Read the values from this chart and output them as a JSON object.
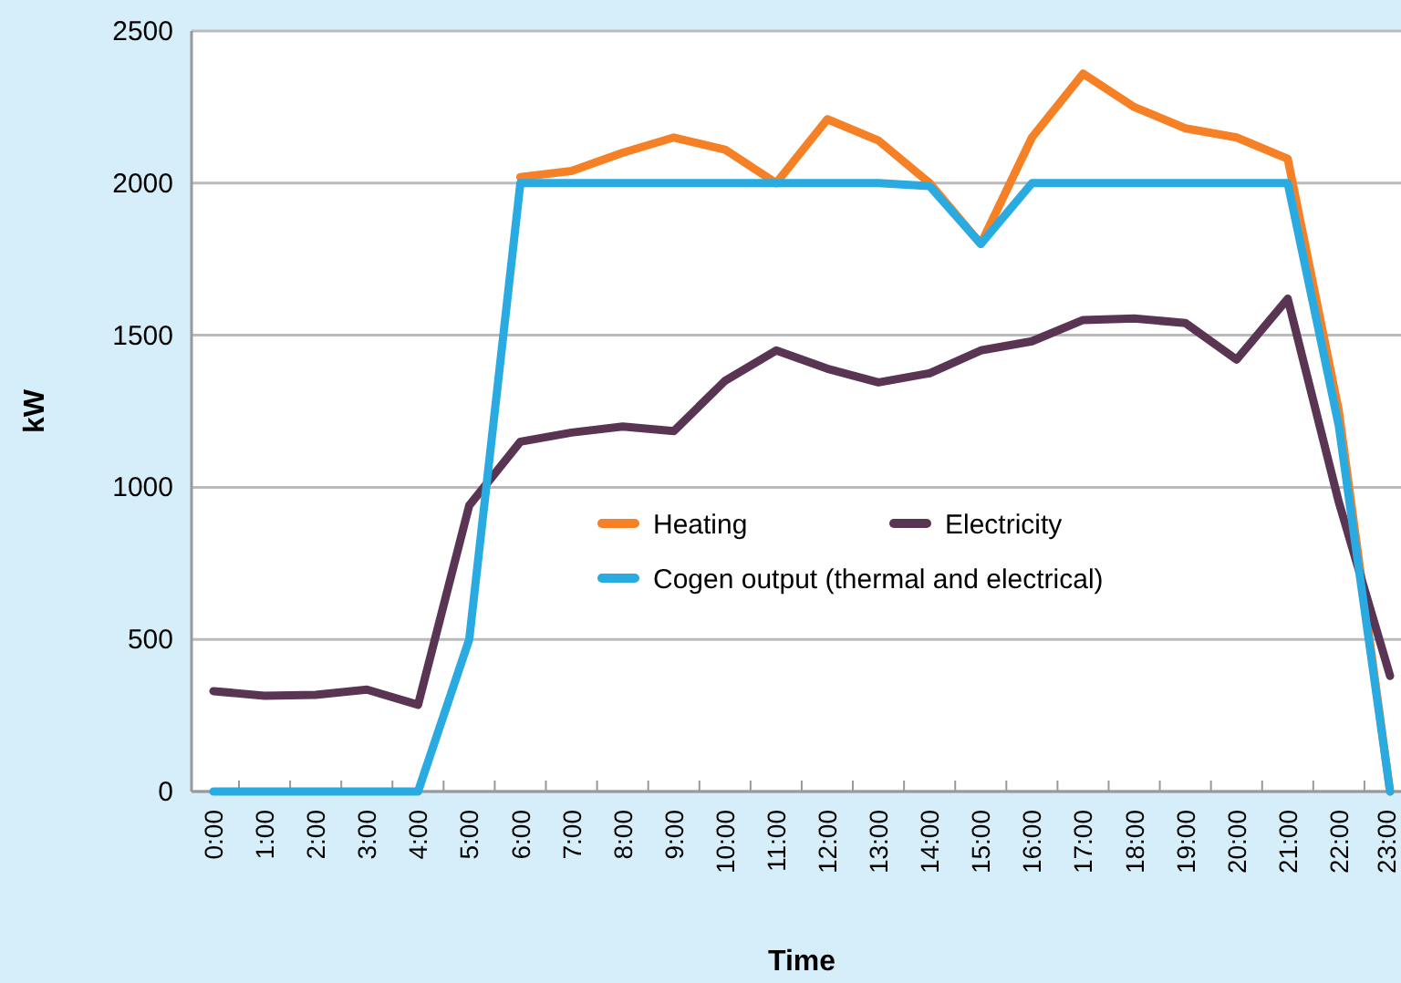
{
  "chart_data": {
    "type": "line",
    "xlabel": "Time",
    "ylabel": "kW",
    "categories": [
      "0:00",
      "1:00",
      "2:00",
      "3:00",
      "4:00",
      "5:00",
      "6:00",
      "7:00",
      "8:00",
      "9:00",
      "10:00",
      "11:00",
      "12:00",
      "13:00",
      "14:00",
      "15:00",
      "16:00",
      "17:00",
      "18:00",
      "19:00",
      "20:00",
      "21:00",
      "22:00",
      "23:00"
    ],
    "series": [
      {
        "name": "Heating",
        "color": "#f58025",
        "values": [
          null,
          null,
          null,
          null,
          null,
          null,
          2020,
          2040,
          2100,
          2150,
          2110,
          2000,
          2210,
          2140,
          2000,
          1800,
          2150,
          2360,
          2250,
          2180,
          2150,
          2080,
          1250,
          0
        ]
      },
      {
        "name": "Electricity",
        "color": "#5a3553",
        "values": [
          330,
          315,
          318,
          335,
          285,
          940,
          1150,
          1180,
          1200,
          1185,
          1350,
          1450,
          1390,
          1345,
          1375,
          1450,
          1480,
          1550,
          1555,
          1540,
          1420,
          1620,
          950,
          380
        ]
      },
      {
        "name": "Cogen output (thermal and electrical)",
        "color": "#29abe2",
        "values": [
          0,
          0,
          0,
          0,
          0,
          500,
          2000,
          2000,
          2000,
          2000,
          2000,
          2000,
          2000,
          2000,
          1990,
          1800,
          2000,
          2000,
          2000,
          2000,
          2000,
          2000,
          1200,
          0
        ]
      }
    ],
    "ylim": [
      0,
      2500
    ],
    "yticks": [
      0,
      500,
      1000,
      1500,
      2000,
      2500
    ],
    "grid": "y",
    "legend": "center",
    "marker": "none",
    "line_style": "solid"
  }
}
